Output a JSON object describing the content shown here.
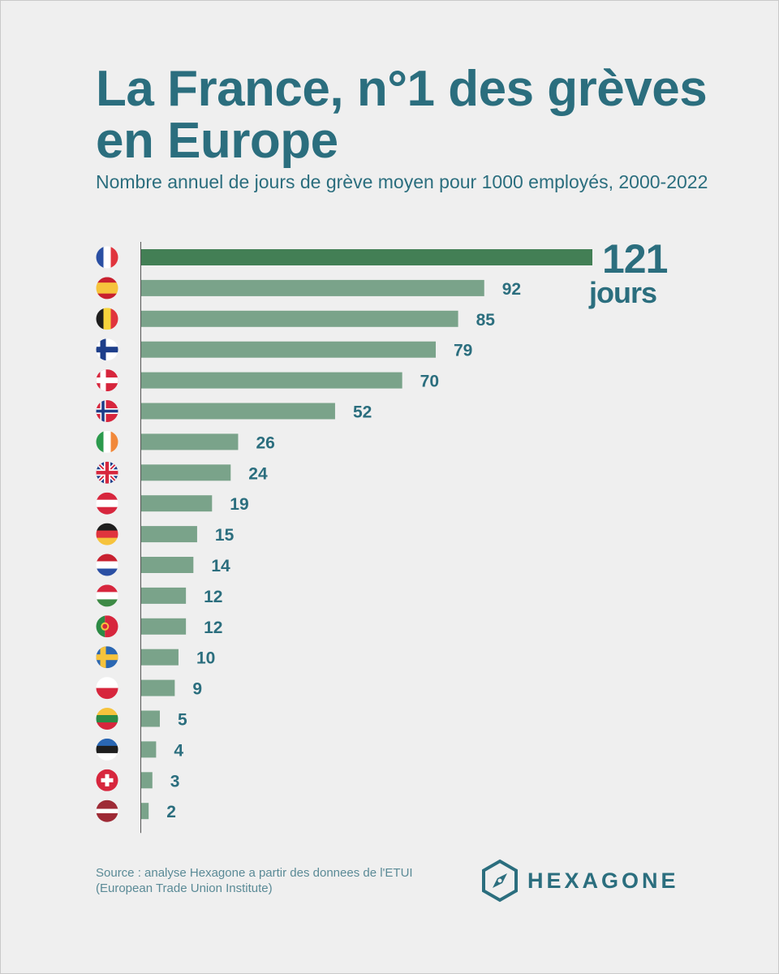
{
  "title": "La France, n°1 des grèves en Europe",
  "subtitle": "Nombre annuel de jours de grève moyen pour 1000 employés, 2000-2022",
  "source": "Source : analyse Hexagone a partir des donnees de l'ETUI (European Trade Union Institute)",
  "brand": "HEXAGONE",
  "colors": {
    "highlight_bar": "#437f55",
    "bar": "#7aa38a",
    "text": "#2b6e7e",
    "background": "#efefef"
  },
  "chart_data": {
    "type": "bar",
    "orientation": "horizontal",
    "categories": [
      "France",
      "Spain",
      "Belgium",
      "Finland",
      "Denmark",
      "Norway",
      "Ireland",
      "United Kingdom",
      "Austria",
      "Germany",
      "Netherlands",
      "Hungary",
      "Portugal",
      "Sweden",
      "Poland",
      "Lithuania",
      "Estonia",
      "Switzerland",
      "Latvia"
    ],
    "values": [
      121,
      92,
      85,
      79,
      70,
      52,
      26,
      24,
      19,
      15,
      14,
      12,
      12,
      10,
      9,
      5,
      4,
      3,
      2
    ],
    "labels": [
      "121",
      "92",
      "85",
      "79",
      "70",
      "52",
      "26",
      "24",
      "19",
      "15",
      "14",
      "12",
      "12",
      "10",
      "9",
      "5",
      "4",
      "3",
      "2"
    ],
    "highlight_index": 0,
    "highlight_unit": "jours",
    "xlim": [
      0,
      121
    ],
    "grid": false,
    "legend": "none"
  }
}
